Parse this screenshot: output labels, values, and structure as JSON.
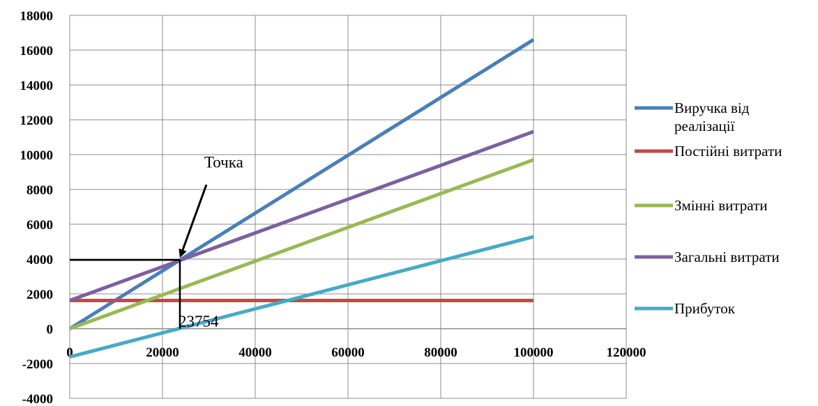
{
  "chart_data": {
    "type": "line",
    "title": "",
    "xlabel": "",
    "ylabel": "",
    "xlim": [
      0,
      120000
    ],
    "ylim": [
      -4000,
      18000
    ],
    "x_ticks": [
      "0",
      "20000",
      "40000",
      "60000",
      "80000",
      "100000",
      "120000"
    ],
    "y_ticks": [
      "18000",
      "16000",
      "14000",
      "12000",
      "10000",
      "8000",
      "6000",
      "4000",
      "2000",
      "0",
      "-2000",
      "-4000"
    ],
    "grid": true,
    "legend_position": "right",
    "series": [
      {
        "name": "Виручка від реалізації",
        "color": "#4a7ebb",
        "x": [
          0,
          100000
        ],
        "y": [
          0,
          16600
        ]
      },
      {
        "name": "Постійні витрати",
        "color": "#be4b48",
        "x": [
          0,
          100000
        ],
        "y": [
          1620,
          1620
        ]
      },
      {
        "name": "Змінні витрати",
        "color": "#98b954",
        "x": [
          0,
          100000
        ],
        "y": [
          0,
          9700
        ]
      },
      {
        "name": "Загальні витрати",
        "color": "#7d5fa0",
        "x": [
          0,
          100000
        ],
        "y": [
          1620,
          11320
        ]
      },
      {
        "name": "Прибуток",
        "color": "#46aac5",
        "x": [
          0,
          100000
        ],
        "y": [
          -1620,
          5280
        ]
      }
    ],
    "annotations": {
      "point_label": "Точка",
      "break_even_label": "23754",
      "break_even_x": 23754,
      "break_even_y": 3950
    }
  }
}
